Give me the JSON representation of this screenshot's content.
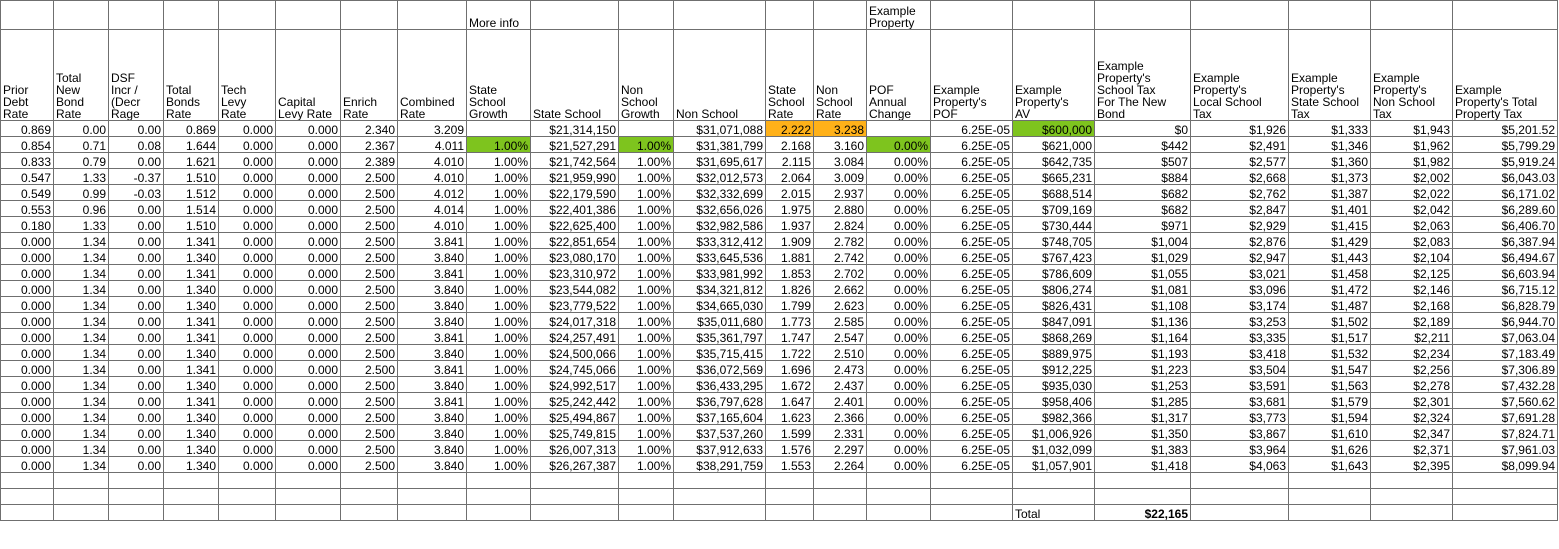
{
  "top_labels": {
    "more_info": "More info",
    "example_property": "Example\nProperty"
  },
  "header": [
    "Prior\nDebt\nRate",
    "Total\nNew\nBond\nRate",
    "DSF\nIncr /\n(Decr\nRage",
    "Total\nBonds\nRate",
    "Tech\nLevy\nRate",
    "Capital\nLevy Rate",
    "Enrich\nRate",
    "Combined\nRate",
    "State\nSchool\nGrowth",
    "State School",
    "Non\nSchool\nGrowth",
    "Non School",
    "State\nSchool\nRate",
    "Non\nSchool\nRate",
    "POF\nAnnual\nChange",
    "Example\nProperty's\nPOF",
    "Example\nProperty's\nAV",
    "Example\nProperty's\nSchool Tax\nFor The New\nBond",
    "Example\nProperty's\nLocal School\nTax",
    "Example\nProperty's\nState School\nTax",
    "Example\nProperty's\nNon School\nTax",
    "Example\nProperty's Total\nProperty Tax"
  ],
  "rows": [
    [
      "0.869",
      "0.00",
      "0.00",
      "0.869",
      "0.000",
      "0.000",
      "2.340",
      "3.209",
      null,
      "$21,314,150",
      null,
      "$31,071,088",
      "2.222",
      "3.238",
      null,
      "6.25E-05",
      "$600,000",
      "$0",
      "$1,926",
      "$1,333",
      "$1,943",
      "$5,201.52"
    ],
    [
      "0.854",
      "0.71",
      "0.08",
      "1.644",
      "0.000",
      "0.000",
      "2.367",
      "4.011",
      "1.00%",
      "$21,527,291",
      "1.00%",
      "$31,381,799",
      "2.168",
      "3.160",
      "0.00%",
      "6.25E-05",
      "$621,000",
      "$442",
      "$2,491",
      "$1,346",
      "$1,962",
      "$5,799.29"
    ],
    [
      "0.833",
      "0.79",
      "0.00",
      "1.621",
      "0.000",
      "0.000",
      "2.389",
      "4.010",
      "1.00%",
      "$21,742,564",
      "1.00%",
      "$31,695,617",
      "2.115",
      "3.084",
      "0.00%",
      "6.25E-05",
      "$642,735",
      "$507",
      "$2,577",
      "$1,360",
      "$1,982",
      "$5,919.24"
    ],
    [
      "0.547",
      "1.33",
      "-0.37",
      "1.510",
      "0.000",
      "0.000",
      "2.500",
      "4.010",
      "1.00%",
      "$21,959,990",
      "1.00%",
      "$32,012,573",
      "2.064",
      "3.009",
      "0.00%",
      "6.25E-05",
      "$665,231",
      "$884",
      "$2,668",
      "$1,373",
      "$2,002",
      "$6,043.03"
    ],
    [
      "0.549",
      "0.99",
      "-0.03",
      "1.512",
      "0.000",
      "0.000",
      "2.500",
      "4.012",
      "1.00%",
      "$22,179,590",
      "1.00%",
      "$32,332,699",
      "2.015",
      "2.937",
      "0.00%",
      "6.25E-05",
      "$688,514",
      "$682",
      "$2,762",
      "$1,387",
      "$2,022",
      "$6,171.02"
    ],
    [
      "0.553",
      "0.96",
      "0.00",
      "1.514",
      "0.000",
      "0.000",
      "2.500",
      "4.014",
      "1.00%",
      "$22,401,386",
      "1.00%",
      "$32,656,026",
      "1.975",
      "2.880",
      "0.00%",
      "6.25E-05",
      "$709,169",
      "$682",
      "$2,847",
      "$1,401",
      "$2,042",
      "$6,289.60"
    ],
    [
      "0.180",
      "1.33",
      "0.00",
      "1.510",
      "0.000",
      "0.000",
      "2.500",
      "4.010",
      "1.00%",
      "$22,625,400",
      "1.00%",
      "$32,982,586",
      "1.937",
      "2.824",
      "0.00%",
      "6.25E-05",
      "$730,444",
      "$971",
      "$2,929",
      "$1,415",
      "$2,063",
      "$6,406.70"
    ],
    [
      "0.000",
      "1.34",
      "0.00",
      "1.341",
      "0.000",
      "0.000",
      "2.500",
      "3.841",
      "1.00%",
      "$22,851,654",
      "1.00%",
      "$33,312,412",
      "1.909",
      "2.782",
      "0.00%",
      "6.25E-05",
      "$748,705",
      "$1,004",
      "$2,876",
      "$1,429",
      "$2,083",
      "$6,387.94"
    ],
    [
      "0.000",
      "1.34",
      "0.00",
      "1.340",
      "0.000",
      "0.000",
      "2.500",
      "3.840",
      "1.00%",
      "$23,080,170",
      "1.00%",
      "$33,645,536",
      "1.881",
      "2.742",
      "0.00%",
      "6.25E-05",
      "$767,423",
      "$1,029",
      "$2,947",
      "$1,443",
      "$2,104",
      "$6,494.67"
    ],
    [
      "0.000",
      "1.34",
      "0.00",
      "1.341",
      "0.000",
      "0.000",
      "2.500",
      "3.841",
      "1.00%",
      "$23,310,972",
      "1.00%",
      "$33,981,992",
      "1.853",
      "2.702",
      "0.00%",
      "6.25E-05",
      "$786,609",
      "$1,055",
      "$3,021",
      "$1,458",
      "$2,125",
      "$6,603.94"
    ],
    [
      "0.000",
      "1.34",
      "0.00",
      "1.340",
      "0.000",
      "0.000",
      "2.500",
      "3.840",
      "1.00%",
      "$23,544,082",
      "1.00%",
      "$34,321,812",
      "1.826",
      "2.662",
      "0.00%",
      "6.25E-05",
      "$806,274",
      "$1,081",
      "$3,096",
      "$1,472",
      "$2,146",
      "$6,715.12"
    ],
    [
      "0.000",
      "1.34",
      "0.00",
      "1.340",
      "0.000",
      "0.000",
      "2.500",
      "3.840",
      "1.00%",
      "$23,779,522",
      "1.00%",
      "$34,665,030",
      "1.799",
      "2.623",
      "0.00%",
      "6.25E-05",
      "$826,431",
      "$1,108",
      "$3,174",
      "$1,487",
      "$2,168",
      "$6,828.79"
    ],
    [
      "0.000",
      "1.34",
      "0.00",
      "1.341",
      "0.000",
      "0.000",
      "2.500",
      "3.840",
      "1.00%",
      "$24,017,318",
      "1.00%",
      "$35,011,680",
      "1.773",
      "2.585",
      "0.00%",
      "6.25E-05",
      "$847,091",
      "$1,136",
      "$3,253",
      "$1,502",
      "$2,189",
      "$6,944.70"
    ],
    [
      "0.000",
      "1.34",
      "0.00",
      "1.341",
      "0.000",
      "0.000",
      "2.500",
      "3.841",
      "1.00%",
      "$24,257,491",
      "1.00%",
      "$35,361,797",
      "1.747",
      "2.547",
      "0.00%",
      "6.25E-05",
      "$868,269",
      "$1,164",
      "$3,335",
      "$1,517",
      "$2,211",
      "$7,063.04"
    ],
    [
      "0.000",
      "1.34",
      "0.00",
      "1.340",
      "0.000",
      "0.000",
      "2.500",
      "3.840",
      "1.00%",
      "$24,500,066",
      "1.00%",
      "$35,715,415",
      "1.722",
      "2.510",
      "0.00%",
      "6.25E-05",
      "$889,975",
      "$1,193",
      "$3,418",
      "$1,532",
      "$2,234",
      "$7,183.49"
    ],
    [
      "0.000",
      "1.34",
      "0.00",
      "1.341",
      "0.000",
      "0.000",
      "2.500",
      "3.841",
      "1.00%",
      "$24,745,066",
      "1.00%",
      "$36,072,569",
      "1.696",
      "2.473",
      "0.00%",
      "6.25E-05",
      "$912,225",
      "$1,223",
      "$3,504",
      "$1,547",
      "$2,256",
      "$7,306.89"
    ],
    [
      "0.000",
      "1.34",
      "0.00",
      "1.340",
      "0.000",
      "0.000",
      "2.500",
      "3.840",
      "1.00%",
      "$24,992,517",
      "1.00%",
      "$36,433,295",
      "1.672",
      "2.437",
      "0.00%",
      "6.25E-05",
      "$935,030",
      "$1,253",
      "$3,591",
      "$1,563",
      "$2,278",
      "$7,432.28"
    ],
    [
      "0.000",
      "1.34",
      "0.00",
      "1.341",
      "0.000",
      "0.000",
      "2.500",
      "3.841",
      "1.00%",
      "$25,242,442",
      "1.00%",
      "$36,797,628",
      "1.647",
      "2.401",
      "0.00%",
      "6.25E-05",
      "$958,406",
      "$1,285",
      "$3,681",
      "$1,579",
      "$2,301",
      "$7,560.62"
    ],
    [
      "0.000",
      "1.34",
      "0.00",
      "1.340",
      "0.000",
      "0.000",
      "2.500",
      "3.840",
      "1.00%",
      "$25,494,867",
      "1.00%",
      "$37,165,604",
      "1.623",
      "2.366",
      "0.00%",
      "6.25E-05",
      "$982,366",
      "$1,317",
      "$3,773",
      "$1,594",
      "$2,324",
      "$7,691.28"
    ],
    [
      "0.000",
      "1.34",
      "0.00",
      "1.340",
      "0.000",
      "0.000",
      "2.500",
      "3.840",
      "1.00%",
      "$25,749,815",
      "1.00%",
      "$37,537,260",
      "1.599",
      "2.331",
      "0.00%",
      "6.25E-05",
      "$1,006,926",
      "$1,350",
      "$3,867",
      "$1,610",
      "$2,347",
      "$7,824.71"
    ],
    [
      "0.000",
      "1.34",
      "0.00",
      "1.340",
      "0.000",
      "0.000",
      "2.500",
      "3.840",
      "1.00%",
      "$26,007,313",
      "1.00%",
      "$37,912,633",
      "1.576",
      "2.297",
      "0.00%",
      "6.25E-05",
      "$1,032,099",
      "$1,383",
      "$3,964",
      "$1,626",
      "$2,371",
      "$7,961.03"
    ],
    [
      "0.000",
      "1.34",
      "0.00",
      "1.340",
      "0.000",
      "0.000",
      "2.500",
      "3.840",
      "1.00%",
      "$26,267,387",
      "1.00%",
      "$38,291,759",
      "1.553",
      "2.264",
      "0.00%",
      "6.25E-05",
      "$1,057,901",
      "$1,418",
      "$4,063",
      "$1,643",
      "$2,395",
      "$8,099.94"
    ]
  ],
  "total": {
    "label": "Total",
    "value": "$22,165"
  }
}
